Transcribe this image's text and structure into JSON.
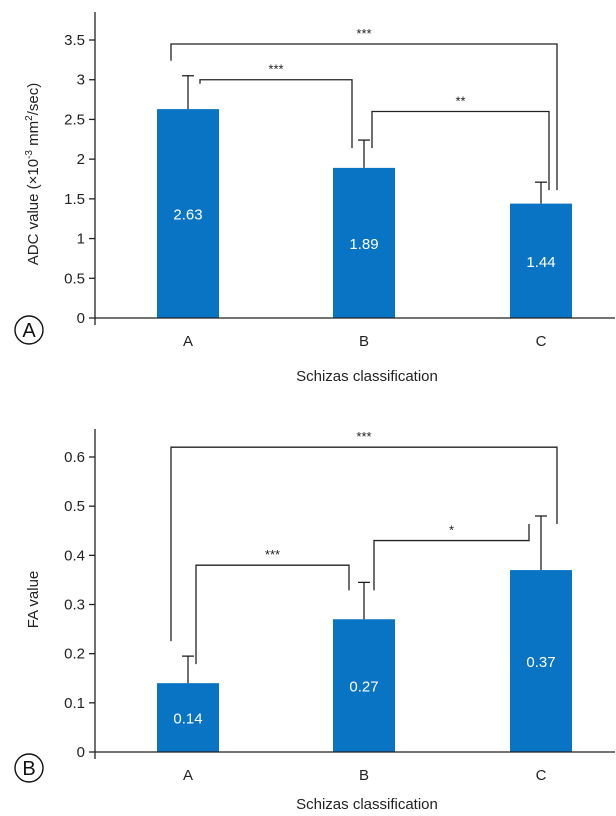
{
  "chart_data": [
    {
      "type": "bar",
      "panel": "A",
      "xlabel": "Schizas classification",
      "ylabel": "ADC value (×10",
      "ylabel_sup1": "-3",
      "ylabel_mid": " mm",
      "ylabel_sup2": "2",
      "ylabel_end": "/sec)",
      "ylim": [
        0,
        3.5
      ],
      "yticks": [
        0,
        0.5,
        1,
        1.5,
        2,
        2.5,
        3,
        3.5
      ],
      "ytick_labels": [
        "0",
        "0.5",
        "1",
        "1.5",
        "2",
        "2.5",
        "3",
        "3.5"
      ],
      "categories": [
        "A",
        "B",
        "C"
      ],
      "values": [
        2.63,
        1.89,
        1.44
      ],
      "value_labels": [
        "2.63",
        "1.89",
        "1.44"
      ],
      "errors": [
        0.42,
        0.35,
        0.27
      ],
      "bar_color": "#0a74c4",
      "grid": false,
      "significance": [
        {
          "from": 0,
          "to": 2,
          "label": "***",
          "level": 3.45
        },
        {
          "from": 0,
          "to": 1,
          "label": "***",
          "level": 3.0
        },
        {
          "from": 1,
          "to": 2,
          "label": "**",
          "level": 2.6
        }
      ]
    },
    {
      "type": "bar",
      "panel": "B",
      "xlabel": "Schizas classification",
      "ylabel": "FA value",
      "ylim": [
        0,
        0.6
      ],
      "yticks": [
        0,
        0.1,
        0.2,
        0.3,
        0.4,
        0.5,
        0.6
      ],
      "ytick_labels": [
        "0",
        "0.1",
        "0.2",
        "0.3",
        "0.4",
        "0.5",
        "0.6"
      ],
      "categories": [
        "A",
        "B",
        "C"
      ],
      "values": [
        0.14,
        0.27,
        0.37
      ],
      "value_labels": [
        "0.14",
        "0.27",
        "0.37"
      ],
      "errors": [
        0.055,
        0.075,
        0.11
      ],
      "bar_color": "#0a74c4",
      "grid": false,
      "significance": [
        {
          "from": 0,
          "to": 2,
          "label": "***",
          "level": 0.62
        },
        {
          "from": 0,
          "to": 1,
          "label": "***",
          "level": 0.38
        },
        {
          "from": 1,
          "to": 2,
          "label": "*",
          "level": 0.43
        }
      ]
    }
  ]
}
